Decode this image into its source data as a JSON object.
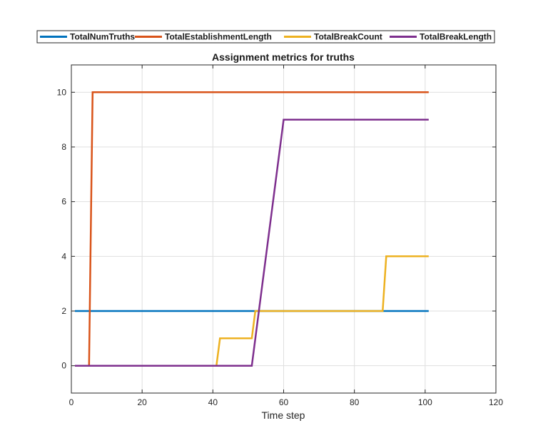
{
  "chart_data": {
    "type": "line",
    "title": "Assignment metrics for truths",
    "xlabel": "Time step",
    "ylabel": "",
    "xlim": [
      0,
      120
    ],
    "ylim": [
      -1,
      11
    ],
    "xticks": [
      0,
      20,
      40,
      60,
      80,
      100,
      120
    ],
    "yticks": [
      0,
      2,
      4,
      6,
      8,
      10
    ],
    "grid": true,
    "legend": {
      "position": "top-center",
      "orientation": "horizontal"
    },
    "series": [
      {
        "name": "TotalNumTruths",
        "color": "#0072BD",
        "x": [
          1,
          101
        ],
        "y": [
          2,
          2
        ]
      },
      {
        "name": "TotalEstablishmentLength",
        "color": "#D95319",
        "x": [
          1,
          5,
          6,
          101
        ],
        "y": [
          0,
          0,
          10,
          10
        ]
      },
      {
        "name": "TotalBreakCount",
        "color": "#EDB120",
        "x": [
          1,
          41,
          42,
          51,
          52,
          88,
          89,
          101
        ],
        "y": [
          0,
          0,
          1,
          1,
          2,
          2,
          4,
          4
        ]
      },
      {
        "name": "TotalBreakLength",
        "color": "#7E2F8E",
        "x": [
          1,
          51,
          60,
          101
        ],
        "y": [
          0,
          0,
          9,
          9
        ]
      }
    ]
  }
}
